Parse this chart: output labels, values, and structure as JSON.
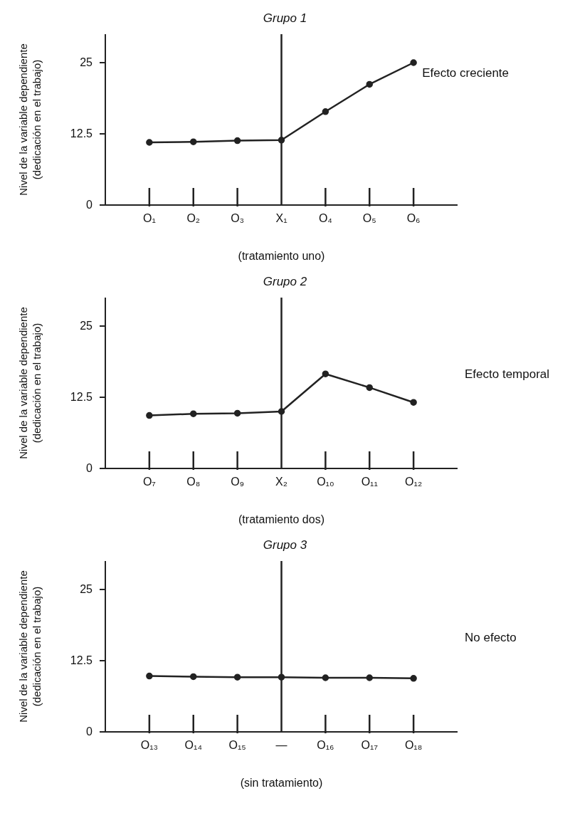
{
  "chart_data": [
    {
      "type": "line",
      "title": "Grupo 1",
      "xlabel": "(tratamiento uno)",
      "ylabel": "Nivel de la variable dependiente\n(dedicación en el trabajo)",
      "categories": [
        "O₁",
        "O₂",
        "O₃",
        "X₁",
        "O₄",
        "O₅",
        "O₆"
      ],
      "series": [
        {
          "color": "#222222",
          "values": [
            11.0,
            11.1,
            11.3,
            11.4,
            16.4,
            21.2,
            25.0
          ]
        }
      ],
      "ylim": [
        0,
        30
      ],
      "yticks": [
        0,
        12.5,
        25
      ],
      "ref_lines": [
        {
          "axis": "x",
          "value": "X₁",
          "color": "#222222"
        }
      ],
      "annotations": [
        {
          "text": "Efecto creciente",
          "x": "O₆",
          "y": 25
        }
      ],
      "marker": "circle",
      "line_style": "solid",
      "grid": false,
      "legend": false
    },
    {
      "type": "line",
      "title": "Grupo 2",
      "xlabel": "(tratamiento dos)",
      "ylabel": "Nivel de la variable dependiente\n(dedicación en el trabajo)",
      "categories": [
        "O₇",
        "O₈",
        "O₉",
        "X₂",
        "O₁₀",
        "O₁₁",
        "O₁₂"
      ],
      "series": [
        {
          "color": "#222222",
          "values": [
            9.3,
            9.6,
            9.7,
            10.0,
            16.6,
            14.2,
            11.6
          ]
        }
      ],
      "ylim": [
        0,
        30
      ],
      "yticks": [
        0,
        12.5,
        25
      ],
      "ref_lines": [
        {
          "axis": "x",
          "value": "X₂",
          "color": "#222222"
        }
      ],
      "annotations": [
        "Efecto temporal"
      ],
      "marker": "circle",
      "line_style": "solid",
      "grid": false,
      "legend": false
    },
    {
      "type": "line",
      "title": "Grupo 3",
      "xlabel": "(sin tratamiento)",
      "ylabel": "Nivel de la variable dependiente\n(dedicación en el trabajo)",
      "categories": [
        "O₁₃",
        "O₁₄",
        "O₁₅",
        "—",
        "O₁₆",
        "O₁₇",
        "O₁₈"
      ],
      "series": [
        {
          "color": "#222222",
          "values": [
            9.8,
            9.7,
            9.6,
            9.6,
            9.5,
            9.5,
            9.4
          ]
        }
      ],
      "ylim": [
        0,
        30
      ],
      "yticks": [
        0,
        12.5,
        25
      ],
      "ref_lines": [
        {
          "axis": "x",
          "value": "—",
          "color": "#222222"
        }
      ],
      "annotations": [
        "No efecto"
      ],
      "marker": "circle",
      "line_style": "solid",
      "grid": false,
      "legend": false
    }
  ]
}
